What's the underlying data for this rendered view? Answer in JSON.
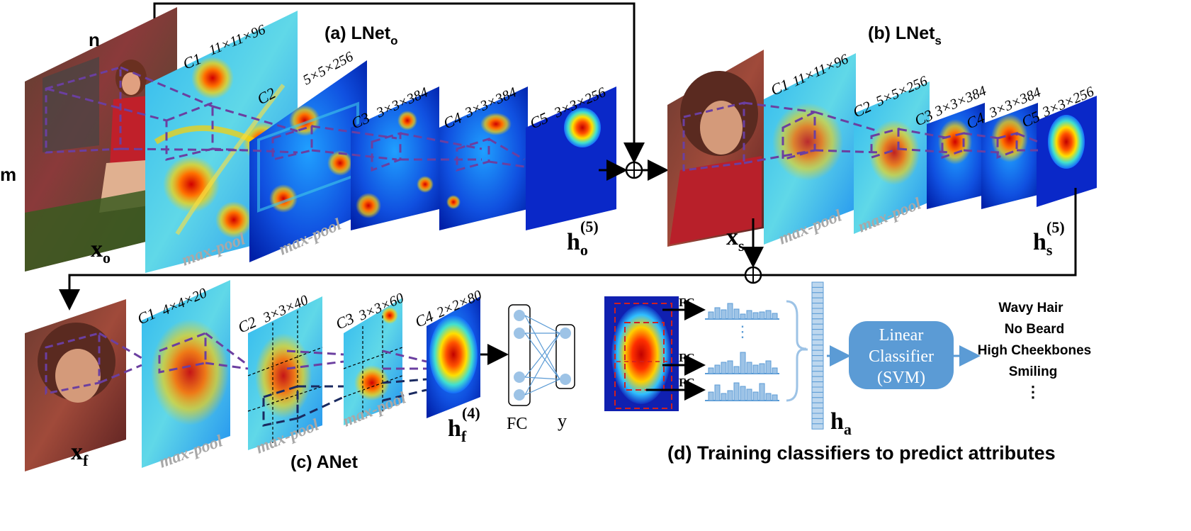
{
  "labels": {
    "n": "n",
    "m": "m",
    "xo": "x",
    "xo_sub": "o",
    "xs": "x",
    "xs_sub": "s",
    "xf": "x",
    "xf_sub": "f",
    "ho": "h",
    "ho_sub": "o",
    "ho_sup": "(5)",
    "hs": "h",
    "hs_sub": "s",
    "hs_sup": "(5)",
    "hf": "h",
    "hf_sub": "f",
    "hf_sup": "(4)",
    "ha": "h",
    "ha_sub": "a",
    "fc": "FC",
    "y": "y",
    "maxpool": "max-pool",
    "oplus": "⊕"
  },
  "titles": {
    "lnet_o": "(a) LNet",
    "lnet_o_sub": "o",
    "lnet_s": "(b) LNet",
    "lnet_s_sub": "s",
    "anet": "(c) ANet",
    "training": "(d) Training classifiers to predict attributes"
  },
  "lnet_o_layers": [
    {
      "name": "C1",
      "dims": "11×11×96"
    },
    {
      "name": "C2",
      "dims": "5×5×256"
    },
    {
      "name": "C3",
      "dims": "3×3×384"
    },
    {
      "name": "C4",
      "dims": "3×3×384"
    },
    {
      "name": "C5",
      "dims": "3×3×256"
    }
  ],
  "lnet_s_layers": [
    {
      "name": "C1",
      "dims": "11×11×96"
    },
    {
      "name": "C2",
      "dims": "5×5×256"
    },
    {
      "name": "C3",
      "dims": "3×3×384"
    },
    {
      "name": "C4",
      "dims": "3×3×384"
    },
    {
      "name": "C5",
      "dims": "3×3×256"
    }
  ],
  "anet_layers": [
    {
      "name": "C1",
      "dims": "4×4×20"
    },
    {
      "name": "C2",
      "dims": "3×3×40"
    },
    {
      "name": "C3",
      "dims": "3×3×60"
    },
    {
      "name": "C4",
      "dims": "2×2×80"
    }
  ],
  "classifier": {
    "line1": "Linear",
    "line2": "Classifier",
    "line3": "(SVM)",
    "fc_labels": [
      "FC",
      "FC",
      "FC"
    ],
    "dots": "⋮"
  },
  "attributes": [
    "Wavy Hair",
    "No Beard",
    "High Cheekbones",
    "Smiling",
    "⋮"
  ],
  "colors": {
    "accent_purple": "#6b3fa0",
    "classifier_blue": "#5b9bd5",
    "bar_blue": "#9dc3e6",
    "arrow": "#000000"
  }
}
